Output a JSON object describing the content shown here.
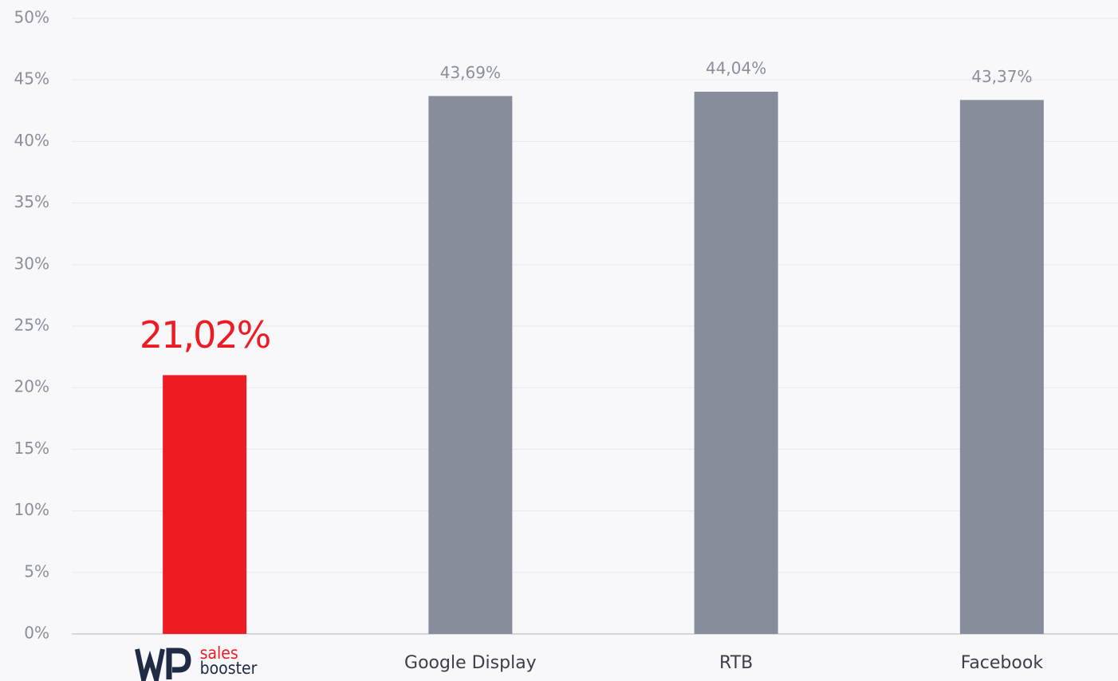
{
  "chart_data": {
    "type": "bar",
    "categories": [
      "sales booster",
      "Google Display",
      "RTB",
      "Facebook"
    ],
    "values": [
      21.02,
      43.69,
      44.04,
      43.37
    ],
    "value_labels": [
      "21,02%",
      "43,69%",
      "44,04%",
      "43,37%"
    ],
    "colors": [
      "#ed1c24",
      "#878d9a",
      "#878d9a",
      "#878d9a"
    ],
    "ylim": [
      0,
      50
    ],
    "yticks": [
      {
        "value": 0,
        "label": "0%"
      },
      {
        "value": 5,
        "label": "5%"
      },
      {
        "value": 10,
        "label": "10%"
      },
      {
        "value": 15,
        "label": "15%"
      },
      {
        "value": 20,
        "label": "20%"
      },
      {
        "value": 25,
        "label": "25%"
      },
      {
        "value": 30,
        "label": "30%"
      },
      {
        "value": 35,
        "label": "35%"
      },
      {
        "value": 40,
        "label": "40%"
      },
      {
        "value": 45,
        "label": "45%"
      },
      {
        "value": 50,
        "label": "50%"
      }
    ],
    "grid": true
  }
}
